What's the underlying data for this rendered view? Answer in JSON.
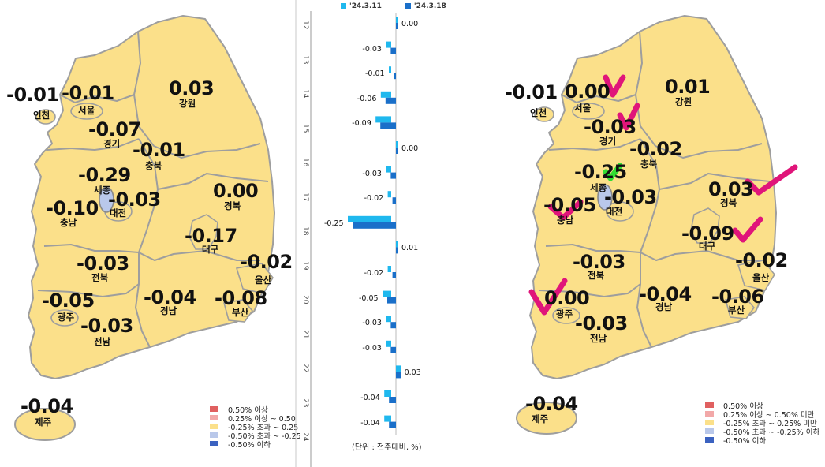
{
  "left_map": {
    "regions": [
      {
        "key": "incheon",
        "name": "인천",
        "value": "-0.01"
      },
      {
        "key": "seoul",
        "name": "서울",
        "value": "-0.01"
      },
      {
        "key": "gangwon",
        "name": "강원",
        "value": "0.03"
      },
      {
        "key": "gyeonggi",
        "name": "경기",
        "value": "-0.07"
      },
      {
        "key": "chungbuk",
        "name": "충북",
        "value": "-0.01"
      },
      {
        "key": "sejong",
        "name": "세종",
        "value": "-0.29"
      },
      {
        "key": "daejeon",
        "name": "대전",
        "value": "-0.03"
      },
      {
        "key": "chungnam",
        "name": "충남",
        "value": "-0.10"
      },
      {
        "key": "gyeongbuk",
        "name": "경북",
        "value": "0.00"
      },
      {
        "key": "daegu",
        "name": "대구",
        "value": "-0.17"
      },
      {
        "key": "ulsan",
        "name": "울산",
        "value": "-0.02"
      },
      {
        "key": "jeonbuk",
        "name": "전북",
        "value": "-0.03"
      },
      {
        "key": "gwangju",
        "name": "광주",
        "value": "-0.05"
      },
      {
        "key": "gyeongnam",
        "name": "경남",
        "value": "-0.04"
      },
      {
        "key": "busan",
        "name": "부산",
        "value": "-0.08"
      },
      {
        "key": "jeonnam",
        "name": "전남",
        "value": "-0.03"
      },
      {
        "key": "jeju",
        "name": "제주",
        "value": "-0.04"
      }
    ],
    "legend": [
      {
        "label": "0.50% 이상",
        "color": "#e06060"
      },
      {
        "label": "0.25% 이상 ~ 0.50",
        "color": "#f2a8a8"
      },
      {
        "label": "-0.25% 초과 ~ 0.25",
        "color": "#fbe08a"
      },
      {
        "label": "-0.50% 초과 ~ -0.25",
        "color": "#b9c8ea"
      },
      {
        "label": "-0.50% 이하",
        "color": "#3b62c0"
      }
    ]
  },
  "right_map": {
    "regions": [
      {
        "key": "incheon",
        "name": "인천",
        "value": "-0.01"
      },
      {
        "key": "seoul",
        "name": "서울",
        "value": "0.00"
      },
      {
        "key": "gangwon",
        "name": "강원",
        "value": "0.01"
      },
      {
        "key": "gyeonggi",
        "name": "경기",
        "value": "-0.03"
      },
      {
        "key": "chungbuk",
        "name": "충북",
        "value": "-0.02"
      },
      {
        "key": "sejong",
        "name": "세종",
        "value": "-0.25"
      },
      {
        "key": "daejeon",
        "name": "대전",
        "value": "-0.03"
      },
      {
        "key": "chungnam",
        "name": "충남",
        "value": "-0.05"
      },
      {
        "key": "gyeongbuk",
        "name": "경북",
        "value": "0.03"
      },
      {
        "key": "daegu",
        "name": "대구",
        "value": "-0.09"
      },
      {
        "key": "ulsan",
        "name": "울산",
        "value": "-0.02"
      },
      {
        "key": "jeonbuk",
        "name": "전북",
        "value": "-0.03"
      },
      {
        "key": "gwangju",
        "name": "광주",
        "value": "0.00"
      },
      {
        "key": "gyeongnam",
        "name": "경남",
        "value": "-0.04"
      },
      {
        "key": "busan",
        "name": "부산",
        "value": "-0.06"
      },
      {
        "key": "jeonnam",
        "name": "전남",
        "value": "-0.03"
      },
      {
        "key": "jeju",
        "name": "제주",
        "value": "-0.04"
      }
    ],
    "legend": [
      {
        "label": "0.50% 이상",
        "color": "#e06060"
      },
      {
        "label": "0.25% 이상 ~ 0.50% 미만",
        "color": "#f2a8a8"
      },
      {
        "label": "-0.25% 초과 ~ 0.25% 미만",
        "color": "#fbe08a"
      },
      {
        "label": "-0.50% 초과 ~ -0.25% 이하",
        "color": "#b9c8ea"
      },
      {
        "label": "-0.50% 이하",
        "color": "#3b62c0"
      }
    ],
    "check_marks": [
      {
        "region": "seoul",
        "color": "#e0157a"
      },
      {
        "region": "gyeonggi",
        "color": "#e0157a"
      },
      {
        "region": "sejong",
        "color": "#33dd33"
      },
      {
        "region": "chungnam",
        "color": "#e0157a"
      },
      {
        "region": "gyeongbuk",
        "color": "#e0157a"
      },
      {
        "region": "daegu",
        "color": "#e0157a"
      },
      {
        "region": "gwangju",
        "color": "#e0157a"
      }
    ]
  },
  "chart_data": {
    "type": "bar",
    "orientation": "horizontal",
    "series": [
      {
        "name": "'24.3.11",
        "color": "#1fb8ee"
      },
      {
        "name": "'24.3.18",
        "color": "#1a6fc9"
      }
    ],
    "week_labels": [
      "12",
      "13",
      "14",
      "15",
      "16",
      "17",
      "18",
      "19",
      "20",
      "21",
      "22",
      "23",
      "24"
    ],
    "values": [
      "0.00",
      "-0.03",
      "-0.01",
      "-0.06",
      "-0.09",
      "0.00",
      "-0.03",
      "-0.02",
      "-0.25",
      "0.01",
      "-0.02",
      "-0.05",
      "-0.03",
      "-0.03",
      "0.03",
      "-0.04",
      "-0.04"
    ],
    "unit_note": "(단위 : 전주대비, %)"
  }
}
